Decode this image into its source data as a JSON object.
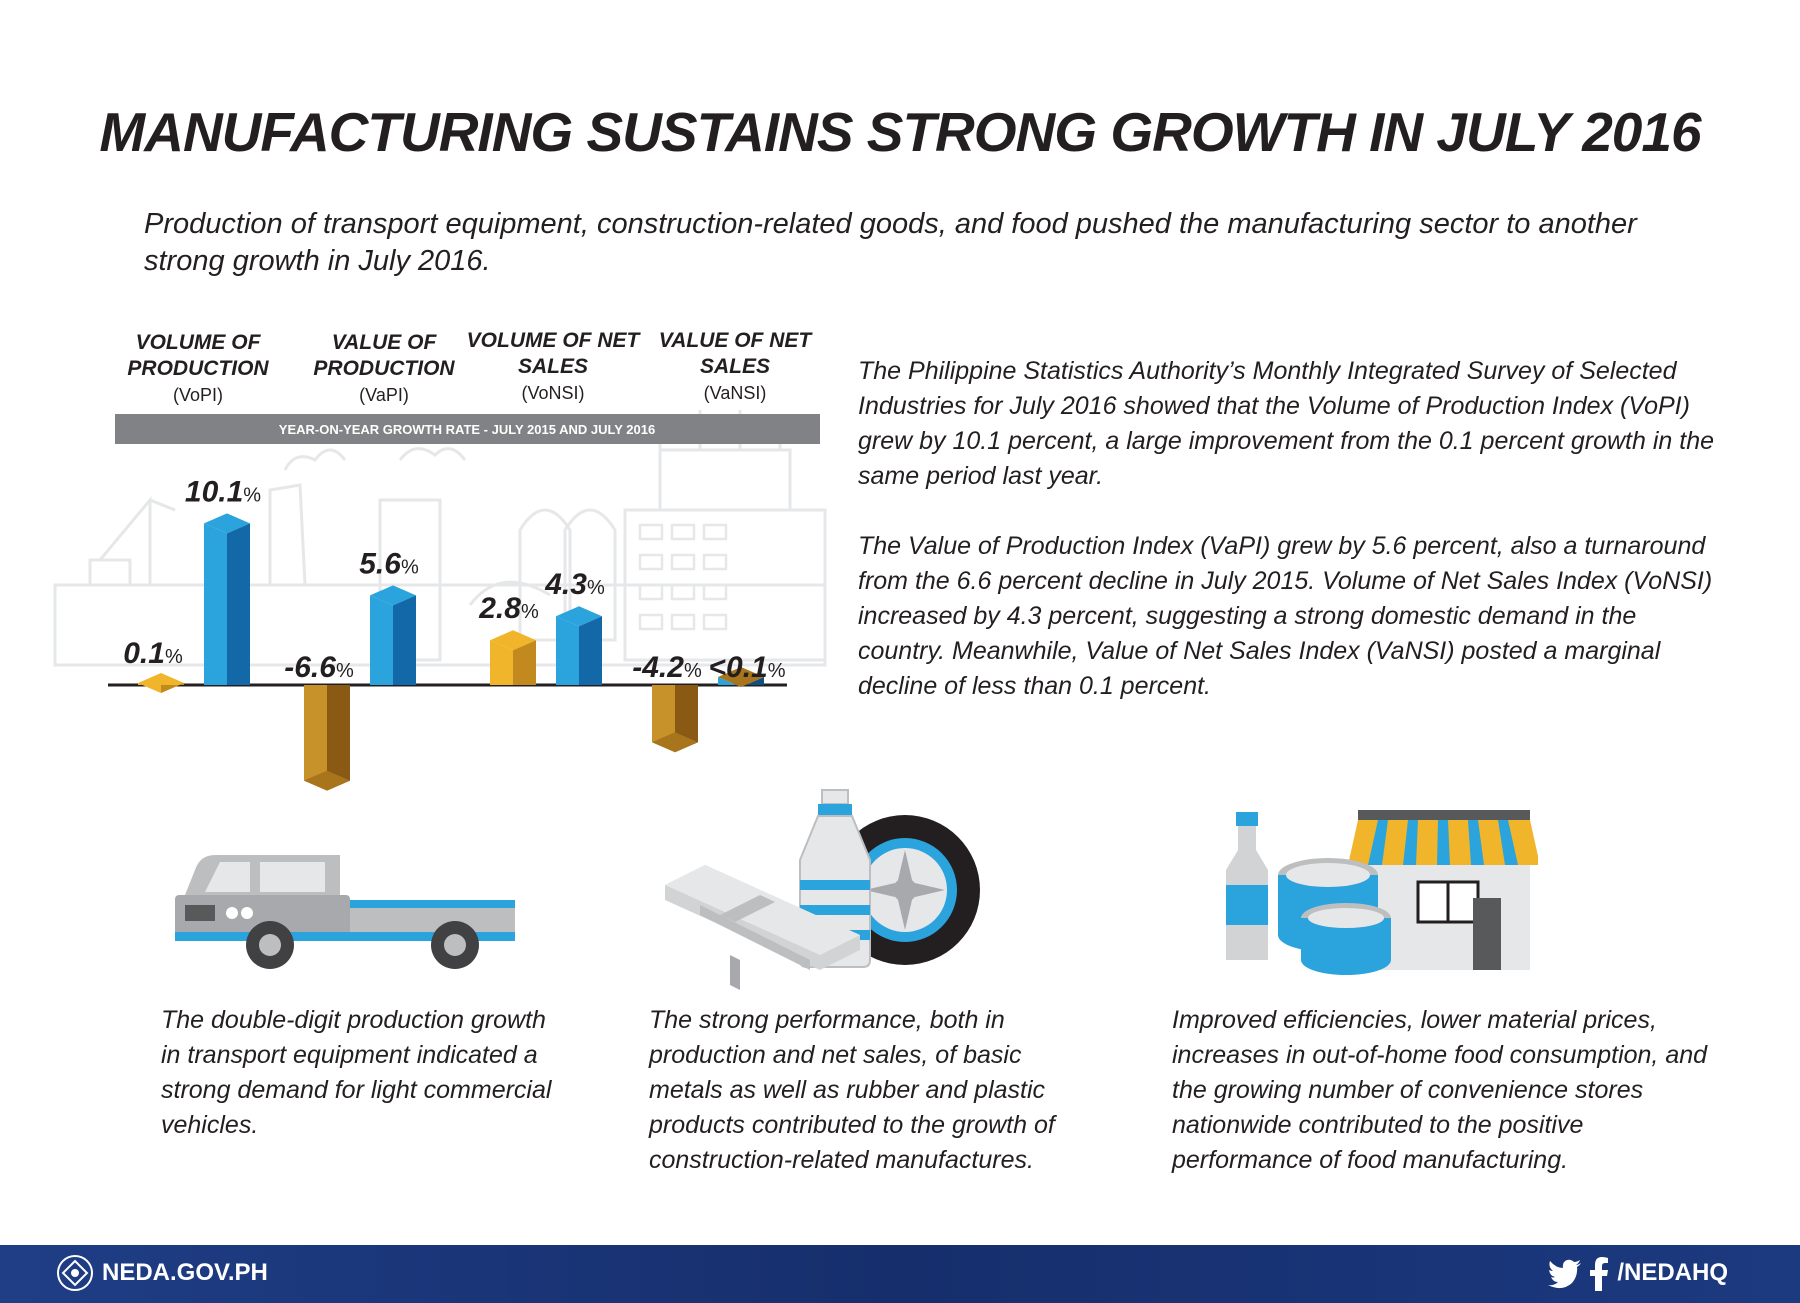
{
  "header": {
    "title": "MANUFACTURING SUSTAINS STRONG GROWTH IN JULY 2016",
    "subtitle": "Production of transport equipment, construction-related goods, and food pushed the manufacturing sector to another strong growth in July 2016."
  },
  "chart_data": {
    "type": "bar",
    "title": "YEAR-ON-YEAR GROWTH RATE - JULY 2015 AND JULY 2016",
    "categories": [
      {
        "label": "VOLUME OF PRODUCTION",
        "abbr": "(VoPI)"
      },
      {
        "label": "VALUE OF PRODUCTION",
        "abbr": "(VaPI)"
      },
      {
        "label": "VOLUME OF NET SALES",
        "abbr": "(VoNSI)"
      },
      {
        "label": "VALUE OF NET SALES",
        "abbr": "(VaNSI)"
      }
    ],
    "series": [
      {
        "name": "July 2015",
        "color": "#f0b52b",
        "values": [
          0.1,
          -6.6,
          2.8,
          -4.2
        ],
        "labels": [
          "0.1",
          "-6.6",
          "2.8",
          "-4.2"
        ]
      },
      {
        "name": "July 2016",
        "color": "#2ba3dc",
        "values": [
          10.1,
          5.6,
          4.3,
          -0.05
        ],
        "labels": [
          "10.1",
          "5.6",
          "4.3",
          "<0.1"
        ]
      }
    ],
    "unit": "%",
    "grid": false
  },
  "body": {
    "p1": "The Philippine Statistics Authority’s Monthly Integrated Survey of Selected Industries for July 2016 showed that the Volume of Production Index (VoPI) grew by 10.1 percent, a large improvement from the 0.1 percent growth in the same period last year.",
    "p2": "The Value of Production Index (VaPI) grew by 5.6 percent, also a turnaround from the 6.6 percent decline in July 2015. Volume of Net Sales Index (VoNSI) increased by 4.3 percent, suggesting a strong domestic demand in the country. Meanwhile, Value of Net Sales Index (VaNSI) posted a marginal decline of less than 0.1 percent."
  },
  "captions": {
    "transport": "The double-digit production growth in transport equipment indicated a strong demand for light commercial vehicles.",
    "construction": "The strong performance, both in production and net sales, of basic metals as well as rubber and plastic products contributed to the growth of construction-related manufactures.",
    "food": "Improved efficiencies, lower material prices, increases in out-of-home food consumption, and the growing number of convenience stores nationwide contributed to the positive performance of food manufacturing."
  },
  "icons": [
    "truck-icon",
    "steel-beam-icon",
    "bottle-icon",
    "tire-icon",
    "store-icon",
    "can-icon"
  ],
  "footer": {
    "site": "NEDA.GOV.PH",
    "handle": "/NEDAHQ"
  }
}
